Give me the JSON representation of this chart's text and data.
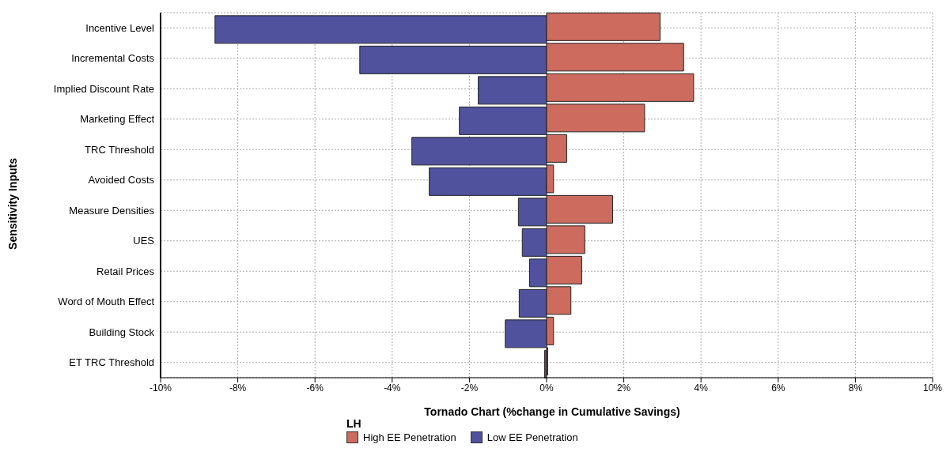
{
  "chart_data": {
    "type": "bar",
    "orientation": "horizontal",
    "xlabel": "Tornado Chart (%change in Cumulative Savings)",
    "ylabel": "Sensitivity Inputs",
    "legend_title": "LH",
    "categories": [
      "Incentive Level",
      "Incremental Costs",
      "Implied Discount Rate",
      "Marketing Effect",
      "TRC Threshold",
      "Avoided Costs",
      "Measure Densities",
      "UES",
      "Retail Prices",
      "Word of Mouth Effect",
      "Building Stock",
      "ET TRC Threshold"
    ],
    "series": [
      {
        "name": "High EE Penetration",
        "color": "#cd6b5f",
        "values": [
          2.94,
          3.55,
          3.81,
          2.54,
          0.52,
          0.18,
          1.71,
          0.99,
          0.91,
          0.63,
          0.18,
          0.03
        ]
      },
      {
        "name": "Low EE Penetration",
        "color": "#50529e",
        "values": [
          -8.59,
          -4.84,
          -1.77,
          -2.26,
          -3.49,
          -3.04,
          -0.73,
          -0.63,
          -0.44,
          -0.71,
          -1.07,
          -0.05
        ]
      }
    ],
    "xlim": [
      -10,
      10
    ],
    "xticks": [
      {
        "value": -10,
        "label": "-10%"
      },
      {
        "value": -8,
        "label": "-8%"
      },
      {
        "value": -6,
        "label": "-6%"
      },
      {
        "value": -4,
        "label": "-4%"
      },
      {
        "value": -2,
        "label": "-2%"
      },
      {
        "value": 0,
        "label": "0%"
      },
      {
        "value": 2,
        "label": "2%"
      },
      {
        "value": 4,
        "label": "4%"
      },
      {
        "value": 6,
        "label": "6%"
      },
      {
        "value": 8,
        "label": "8%"
      },
      {
        "value": 10,
        "label": "10%"
      }
    ],
    "grid": true,
    "legend": "bottom"
  }
}
